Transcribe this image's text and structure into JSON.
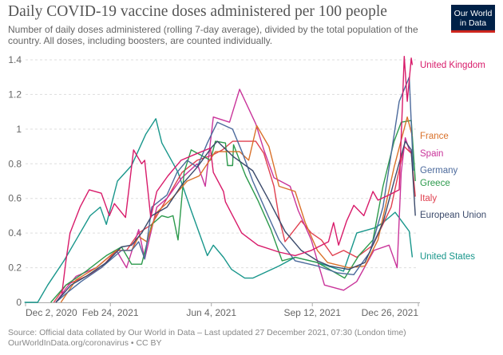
{
  "header": {
    "title": "Daily COVID-19 vaccine doses administered per 100 people",
    "subtitle": "Number of daily doses administered (rolling 7-day average), divided by the total population of the country. All doses, including boosters, are counted individually.",
    "logo_line1": "Our World",
    "logo_line2": "in Data"
  },
  "footer": {
    "source": "Source: Official data collated by Our World in Data – Last updated 27 December 2021, 07:30 (London time)",
    "link": "OurWorldInData.org/coronavirus • CC BY"
  },
  "chart_data": {
    "type": "line",
    "title": "Daily COVID-19 vaccine doses administered per 100 people",
    "xlabel": "",
    "ylabel": "",
    "x_origin": "2020-12-02",
    "x_unit": "days since 2020-12-02",
    "xlim": [
      0,
      389
    ],
    "ylim": [
      0,
      1.4
    ],
    "grid": true,
    "legend_placement": "right (line-end labels)",
    "x_ticks": [
      {
        "day": 0,
        "label": "Dec 2, 2020"
      },
      {
        "day": 84,
        "label": "Feb 24, 2021"
      },
      {
        "day": 184,
        "label": "Jun 4, 2021"
      },
      {
        "day": 284,
        "label": "Sep 12, 2021"
      },
      {
        "day": 389,
        "label": "Dec 26, 2021"
      }
    ],
    "y_ticks": [
      {
        "value": 0,
        "label": "0"
      },
      {
        "value": 0.2,
        "label": "0.2"
      },
      {
        "value": 0.4,
        "label": "0.4"
      },
      {
        "value": 0.6,
        "label": "0.6"
      },
      {
        "value": 0.8,
        "label": "0.8"
      },
      {
        "value": 1,
        "label": "1"
      },
      {
        "value": 1.2,
        "label": "1.2"
      },
      {
        "value": 1.4,
        "label": "1.4"
      }
    ],
    "series": [
      {
        "name": "United States",
        "color": "#18968b",
        "points": [
          [
            -1,
            0
          ],
          [
            12,
            0
          ],
          [
            22,
            0.1
          ],
          [
            38,
            0.24
          ],
          [
            51,
            0.37
          ],
          [
            64,
            0.5
          ],
          [
            74,
            0.55
          ],
          [
            80,
            0.45
          ],
          [
            91,
            0.7
          ],
          [
            105,
            0.79
          ],
          [
            119,
            0.97
          ],
          [
            129,
            1.06
          ],
          [
            135,
            0.92
          ],
          [
            151,
            0.75
          ],
          [
            164,
            0.53
          ],
          [
            180,
            0.27
          ],
          [
            186,
            0.33
          ],
          [
            196,
            0.26
          ],
          [
            204,
            0.19
          ],
          [
            217,
            0.14
          ],
          [
            225,
            0.14
          ],
          [
            251,
            0.21
          ],
          [
            267,
            0.26
          ],
          [
            289,
            0.23
          ],
          [
            315,
            0.18
          ],
          [
            328,
            0.4
          ],
          [
            346,
            0.43
          ],
          [
            354,
            0.46
          ],
          [
            366,
            0.52
          ],
          [
            380,
            0.41
          ],
          [
            383,
            0.26
          ]
        ]
      },
      {
        "name": "Italy",
        "color": "#e0404f",
        "points": [
          [
            28,
            0
          ],
          [
            40,
            0.1
          ],
          [
            60,
            0.15
          ],
          [
            75,
            0.2
          ],
          [
            90,
            0.3
          ],
          [
            100,
            0.3
          ],
          [
            112,
            0.4
          ],
          [
            125,
            0.45
          ],
          [
            140,
            0.6
          ],
          [
            155,
            0.75
          ],
          [
            170,
            0.82
          ],
          [
            185,
            0.85
          ],
          [
            195,
            0.88
          ],
          [
            205,
            0.93
          ],
          [
            228,
            0.93
          ],
          [
            236,
            0.86
          ],
          [
            246,
            0.67
          ],
          [
            251,
            0.49
          ],
          [
            257,
            0.35
          ],
          [
            273,
            0.47
          ],
          [
            283,
            0.4
          ],
          [
            293,
            0.36
          ],
          [
            304,
            0.27
          ],
          [
            315,
            0.3
          ],
          [
            328,
            0.26
          ],
          [
            344,
            0.33
          ],
          [
            362,
            0.55
          ],
          [
            375,
            0.9
          ],
          [
            382,
            0.86
          ],
          [
            386,
            0.61
          ]
        ]
      },
      {
        "name": "Spain",
        "color": "#c9349a",
        "points": [
          [
            30,
            0
          ],
          [
            40,
            0.08
          ],
          [
            50,
            0.15
          ],
          [
            70,
            0.2
          ],
          [
            90,
            0.3
          ],
          [
            100,
            0.2
          ],
          [
            112,
            0.42
          ],
          [
            118,
            0.25
          ],
          [
            130,
            0.55
          ],
          [
            140,
            0.6
          ],
          [
            155,
            0.72
          ],
          [
            170,
            0.8
          ],
          [
            178,
            0.67
          ],
          [
            186,
            1.07
          ],
          [
            202,
            1.04
          ],
          [
            212,
            1.23
          ],
          [
            228,
            1.03
          ],
          [
            236,
            0.88
          ],
          [
            246,
            0.72
          ],
          [
            262,
            0.67
          ],
          [
            270,
            0.53
          ],
          [
            283,
            0.36
          ],
          [
            296,
            0.1
          ],
          [
            315,
            0.07
          ],
          [
            328,
            0.12
          ],
          [
            345,
            0.3
          ],
          [
            360,
            0.33
          ],
          [
            368,
            0.2
          ],
          [
            372,
            0.75
          ],
          [
            376,
            0.95
          ],
          [
            380,
            0.88
          ],
          [
            383,
            0.86
          ]
        ]
      },
      {
        "name": "Greece",
        "color": "#2c9a4c",
        "points": [
          [
            25,
            0
          ],
          [
            40,
            0.1
          ],
          [
            60,
            0.18
          ],
          [
            80,
            0.27
          ],
          [
            95,
            0.32
          ],
          [
            105,
            0.22
          ],
          [
            115,
            0.22
          ],
          [
            125,
            0.45
          ],
          [
            135,
            0.5
          ],
          [
            141,
            0.49
          ],
          [
            146,
            0.5
          ],
          [
            151,
            0.36
          ],
          [
            157,
            0.75
          ],
          [
            164,
            0.88
          ],
          [
            183,
            0.82
          ],
          [
            188,
            0.93
          ],
          [
            198,
            0.92
          ],
          [
            200,
            0.79
          ],
          [
            205,
            0.79
          ],
          [
            206,
            0.91
          ],
          [
            218,
            0.73
          ],
          [
            230,
            0.59
          ],
          [
            243,
            0.42
          ],
          [
            254,
            0.24
          ],
          [
            267,
            0.26
          ],
          [
            289,
            0.23
          ],
          [
            304,
            0.18
          ],
          [
            316,
            0.14
          ],
          [
            330,
            0.27
          ],
          [
            344,
            0.36
          ],
          [
            354,
            0.67
          ],
          [
            365,
            0.93
          ],
          [
            372,
            1.04
          ],
          [
            382,
            1.05
          ],
          [
            386,
            0.7
          ]
        ]
      },
      {
        "name": "France",
        "color": "#d9712a",
        "points": [
          [
            35,
            0
          ],
          [
            50,
            0.13
          ],
          [
            70,
            0.2
          ],
          [
            90,
            0.3
          ],
          [
            105,
            0.3
          ],
          [
            112,
            0.38
          ],
          [
            120,
            0.35
          ],
          [
            130,
            0.52
          ],
          [
            145,
            0.6
          ],
          [
            160,
            0.7
          ],
          [
            172,
            0.73
          ],
          [
            188,
            0.87
          ],
          [
            212,
            0.87
          ],
          [
            221,
            0.82
          ],
          [
            229,
            1.02
          ],
          [
            241,
            0.9
          ],
          [
            251,
            0.67
          ],
          [
            267,
            0.64
          ],
          [
            277,
            0.46
          ],
          [
            289,
            0.3
          ],
          [
            299,
            0.23
          ],
          [
            320,
            0.2
          ],
          [
            336,
            0.21
          ],
          [
            349,
            0.36
          ],
          [
            365,
            0.78
          ],
          [
            378,
            1.07
          ],
          [
            383,
            0.96
          ]
        ]
      },
      {
        "name": "Germany",
        "color": "#4c6a9c",
        "points": [
          [
            30,
            0
          ],
          [
            40,
            0.05
          ],
          [
            55,
            0.12
          ],
          [
            75,
            0.2
          ],
          [
            95,
            0.3
          ],
          [
            105,
            0.3
          ],
          [
            112,
            0.35
          ],
          [
            118,
            0.25
          ],
          [
            125,
            0.55
          ],
          [
            140,
            0.62
          ],
          [
            150,
            0.75
          ],
          [
            160,
            0.82
          ],
          [
            170,
            0.78
          ],
          [
            180,
            0.92
          ],
          [
            190,
            1.04
          ],
          [
            205,
            1.0
          ],
          [
            215,
            0.86
          ],
          [
            225,
            0.7
          ],
          [
            241,
            0.49
          ],
          [
            251,
            0.36
          ],
          [
            267,
            0.24
          ],
          [
            289,
            0.21
          ],
          [
            309,
            0.17
          ],
          [
            325,
            0.16
          ],
          [
            341,
            0.29
          ],
          [
            354,
            0.55
          ],
          [
            370,
            1.16
          ],
          [
            380,
            1.3
          ],
          [
            384,
            0.76
          ]
        ]
      },
      {
        "name": "European Union",
        "color": "#3b4a6b",
        "points": [
          [
            30,
            0
          ],
          [
            45,
            0.1
          ],
          [
            60,
            0.15
          ],
          [
            80,
            0.23
          ],
          [
            95,
            0.32
          ],
          [
            105,
            0.33
          ],
          [
            115,
            0.4
          ],
          [
            125,
            0.5
          ],
          [
            140,
            0.55
          ],
          [
            155,
            0.68
          ],
          [
            170,
            0.78
          ],
          [
            185,
            0.9
          ],
          [
            190,
            0.93
          ],
          [
            206,
            0.84
          ],
          [
            225,
            0.76
          ],
          [
            241,
            0.59
          ],
          [
            257,
            0.41
          ],
          [
            273,
            0.3
          ],
          [
            289,
            0.24
          ],
          [
            301,
            0.21
          ],
          [
            320,
            0.19
          ],
          [
            336,
            0.23
          ],
          [
            354,
            0.46
          ],
          [
            365,
            0.7
          ],
          [
            376,
            0.93
          ],
          [
            382,
            0.88
          ],
          [
            386,
            0.5
          ]
        ]
      },
      {
        "name": "United Kingdom",
        "color": "#d81b6a",
        "points": [
          [
            36,
            0.05
          ],
          [
            40,
            0.24
          ],
          [
            44,
            0.4
          ],
          [
            54,
            0.55
          ],
          [
            63,
            0.65
          ],
          [
            75,
            0.63
          ],
          [
            83,
            0.5
          ],
          [
            88,
            0.57
          ],
          [
            99,
            0.49
          ],
          [
            107,
            0.88
          ],
          [
            115,
            0.8
          ],
          [
            118,
            0.82
          ],
          [
            124,
            0.49
          ],
          [
            130,
            0.64
          ],
          [
            141,
            0.73
          ],
          [
            154,
            0.82
          ],
          [
            170,
            0.86
          ],
          [
            183,
            0.89
          ],
          [
            186,
            0.75
          ],
          [
            196,
            0.64
          ],
          [
            198,
            0.58
          ],
          [
            214,
            0.4
          ],
          [
            230,
            0.33
          ],
          [
            251,
            0.29
          ],
          [
            267,
            0.27
          ],
          [
            283,
            0.3
          ],
          [
            300,
            0.35
          ],
          [
            305,
            0.46
          ],
          [
            310,
            0.33
          ],
          [
            318,
            0.47
          ],
          [
            325,
            0.56
          ],
          [
            335,
            0.5
          ],
          [
            344,
            0.64
          ],
          [
            349,
            0.59
          ],
          [
            360,
            0.62
          ],
          [
            370,
            0.65
          ],
          [
            375,
            1.42
          ],
          [
            378,
            1.16
          ],
          [
            382,
            1.41
          ],
          [
            383,
            1.37
          ]
        ]
      }
    ]
  }
}
